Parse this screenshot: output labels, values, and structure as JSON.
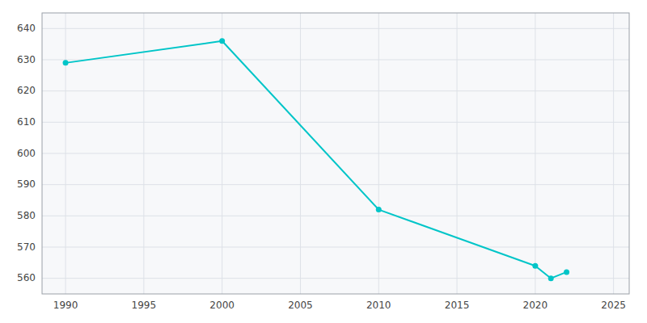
{
  "chart_data": {
    "type": "line",
    "x": [
      1990,
      2000,
      2010,
      2020,
      2021,
      2022
    ],
    "values": [
      629,
      636,
      582,
      564,
      560,
      562
    ],
    "color": "#00C5C8",
    "marker": "circle",
    "xlim": [
      1988.5,
      2026
    ],
    "xticks": [
      1990,
      1995,
      2000,
      2005,
      2010,
      2015,
      2020,
      2025
    ],
    "ylim": [
      555,
      645
    ],
    "yticks": [
      560,
      570,
      580,
      590,
      600,
      610,
      620,
      630,
      640
    ],
    "grid": true
  }
}
